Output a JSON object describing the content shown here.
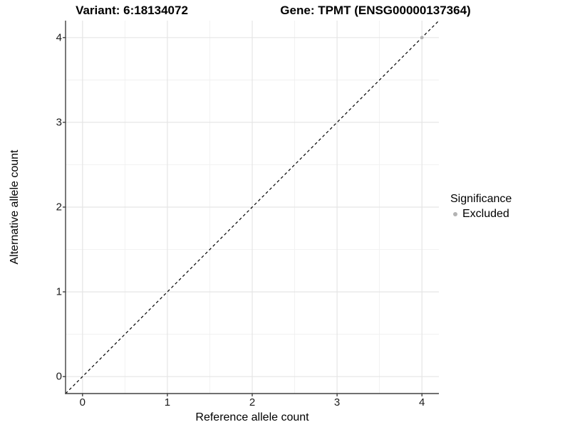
{
  "chart_data": {
    "type": "scatter",
    "titles": {
      "left": "Variant: 6:18134072",
      "right": "Gene: TPMT (ENSG00000137364)"
    },
    "xlabel": "Reference allele count",
    "ylabel": "Alternative allele count",
    "xlim": [
      -0.2,
      4.2
    ],
    "ylim": [
      -0.2,
      4.2
    ],
    "xticks": [
      0,
      1,
      2,
      3,
      4
    ],
    "yticks": [
      0,
      1,
      2,
      3,
      4
    ],
    "grid": {
      "major": true,
      "minor": true,
      "minor_step": 0.5
    },
    "reference_line": {
      "style": "dashed",
      "slope": 1,
      "intercept": 0,
      "color": "#000000"
    },
    "series": [
      {
        "name": "Excluded",
        "color": "#b3b3b3",
        "points": [
          [
            4,
            4
          ]
        ]
      }
    ],
    "legend": {
      "title": "Significance",
      "position": "right",
      "entries": [
        {
          "label": "Excluded",
          "color": "#b3b3b3"
        }
      ]
    },
    "colors": {
      "grid_major": "#e5e5e5",
      "grid_minor": "#f0f0f0",
      "axis_line": "#404040",
      "tick_mark": "#333333"
    }
  }
}
